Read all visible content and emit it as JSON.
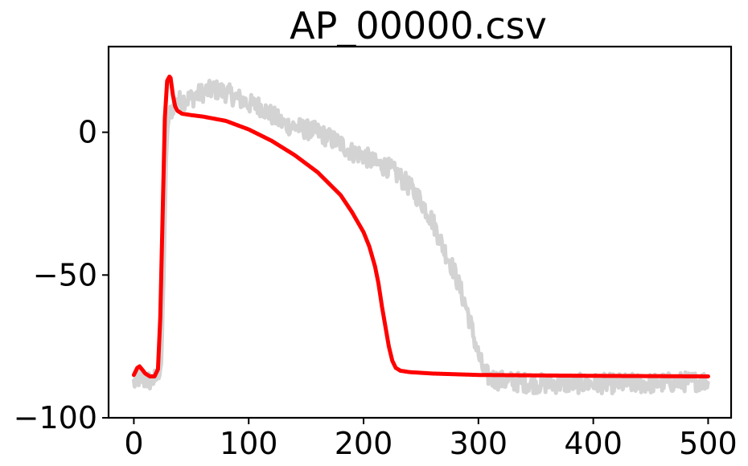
{
  "chart_data": {
    "type": "line",
    "title": "AP_00000.csv",
    "xlabel": "",
    "ylabel": "",
    "xlim": [
      -22,
      520
    ],
    "ylim": [
      -100,
      30
    ],
    "xticks": [
      0,
      100,
      200,
      300,
      400,
      500
    ],
    "xtick_labels": [
      "0",
      "100",
      "200",
      "300",
      "400",
      "500"
    ],
    "yticks": [
      -100,
      -50,
      0
    ],
    "ytick_labels": [
      "−100",
      "−50",
      "0"
    ],
    "grid": false,
    "legend": "none",
    "series": [
      {
        "color": "#d3d3d3",
        "style": "noisy-measured",
        "x": [
          0,
          5,
          10,
          15,
          20,
          22,
          24,
          26,
          28,
          30,
          35,
          40,
          50,
          60,
          70,
          80,
          90,
          100,
          110,
          120,
          130,
          140,
          150,
          160,
          170,
          180,
          190,
          200,
          210,
          220,
          230,
          240,
          250,
          260,
          265,
          270,
          275,
          280,
          285,
          290,
          295,
          300,
          305,
          310,
          320,
          350,
          400,
          450,
          500
        ],
        "y": [
          -88,
          -86,
          -87,
          -87,
          -86,
          -85,
          -80,
          -50,
          -10,
          5,
          10,
          11,
          12,
          14,
          15,
          14,
          12,
          10,
          9,
          6,
          3,
          2,
          1,
          0,
          -2,
          -4,
          -7,
          -8,
          -11,
          -12,
          -15,
          -19,
          -24,
          -31,
          -36,
          -41,
          -45,
          -50,
          -56,
          -62,
          -70,
          -78,
          -84,
          -86,
          -87,
          -88,
          -88,
          -88,
          -87
        ]
      },
      {
        "color": "#ff0000",
        "style": "model-fit",
        "x": [
          0,
          3,
          5,
          7,
          10,
          14,
          18,
          21,
          23,
          25,
          27,
          29,
          31,
          32,
          34,
          36,
          38,
          42,
          50,
          60,
          80,
          100,
          120,
          140,
          160,
          180,
          190,
          200,
          205,
          210,
          213,
          216,
          219,
          222,
          225,
          228,
          232,
          240,
          260,
          300,
          400,
          500
        ],
        "y": [
          -85,
          -82.5,
          -82,
          -83,
          -84.5,
          -85.5,
          -85.5,
          -83,
          -65,
          -30,
          5,
          18,
          19.5,
          19,
          13,
          9,
          7.5,
          6.5,
          6,
          5.5,
          4,
          1,
          -3,
          -8,
          -14,
          -22,
          -28,
          -35,
          -40,
          -47,
          -53,
          -61,
          -68,
          -75,
          -80,
          -82.5,
          -83.5,
          -84,
          -84.5,
          -85,
          -85.3,
          -85.5
        ]
      }
    ]
  }
}
